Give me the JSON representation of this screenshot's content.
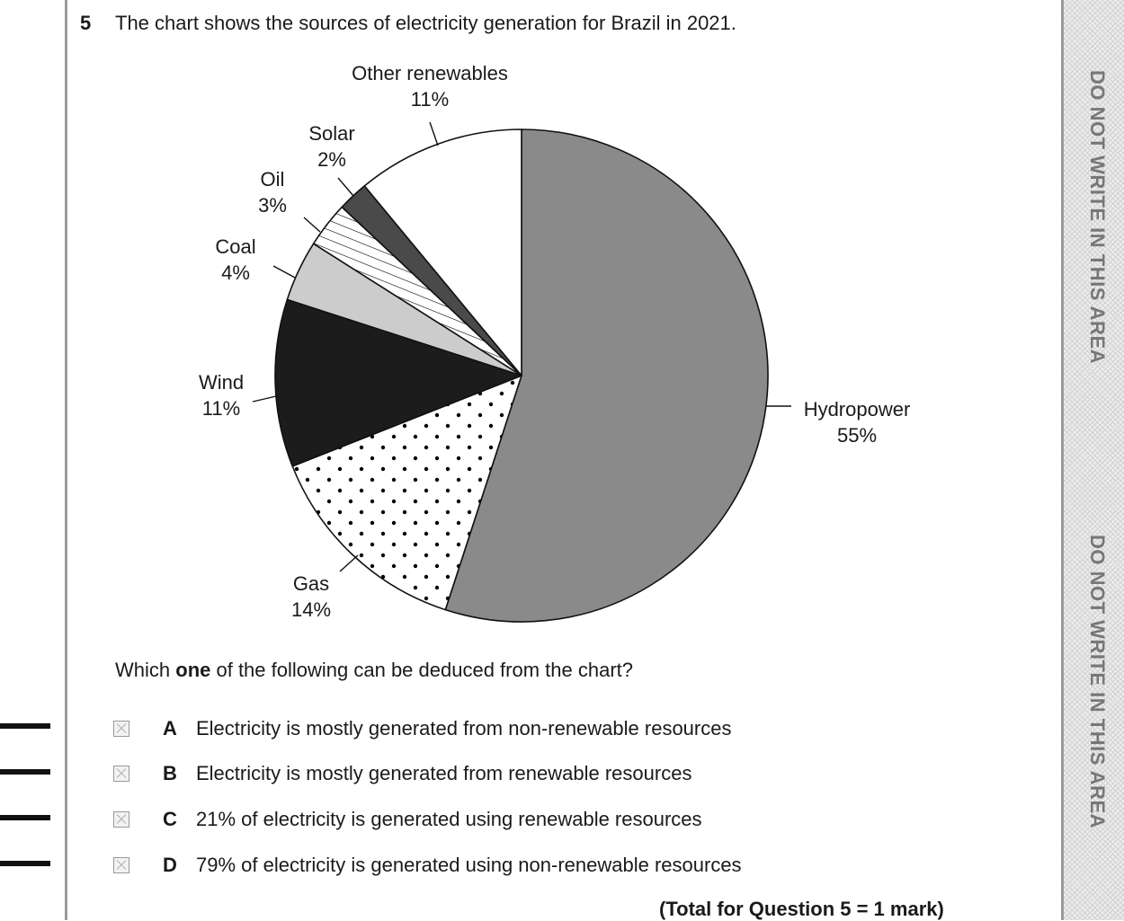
{
  "question": {
    "number": "5",
    "text": "The chart shows the sources of electricity generation for Brazil in 2021."
  },
  "chart_data": {
    "type": "pie",
    "slices": [
      {
        "label": "Hydropower",
        "value": 55,
        "value_label": "55%",
        "color": "#8a8a8a",
        "pattern": "solid"
      },
      {
        "label": "Gas",
        "value": 14,
        "value_label": "14%",
        "color": "#ffffff",
        "pattern": "dots"
      },
      {
        "label": "Wind",
        "value": 11,
        "value_label": "11%",
        "color": "#1c1c1c",
        "pattern": "solid"
      },
      {
        "label": "Coal",
        "value": 4,
        "value_label": "4%",
        "color": "#cccccc",
        "pattern": "solid"
      },
      {
        "label": "Oil",
        "value": 3,
        "value_label": "3%",
        "color": "#ffffff",
        "pattern": "hatch"
      },
      {
        "label": "Solar",
        "value": 2,
        "value_label": "2%",
        "color": "#4a4a4a",
        "pattern": "solid"
      },
      {
        "label": "Other renewables",
        "value": 11,
        "value_label": "11%",
        "color": "#ffffff",
        "pattern": "solid"
      }
    ]
  },
  "prompt": {
    "before": "Which ",
    "bold": "one",
    "after": " of the following can be deduced from the chart?"
  },
  "options": [
    {
      "letter": "A",
      "text": "Electricity is mostly generated from non-renewable resources"
    },
    {
      "letter": "B",
      "text": "Electricity is mostly generated from renewable resources"
    },
    {
      "letter": "C",
      "text": "21% of electricity is generated using renewable resources"
    },
    {
      "letter": "D",
      "text": "79% of electricity is generated using non-renewable resources"
    }
  ],
  "total": "(Total for Question 5 = 1 mark)",
  "margin_warning": "DO NOT WRITE IN THIS AREA"
}
